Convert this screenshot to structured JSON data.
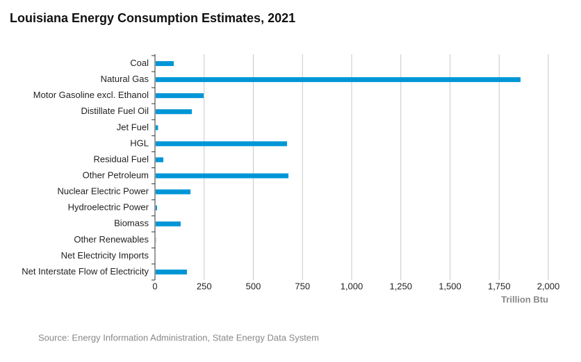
{
  "chart_data": {
    "type": "bar",
    "orientation": "horizontal",
    "title": "Louisiana Energy Consumption Estimates, 2021",
    "categories": [
      "Coal",
      "Natural Gas",
      "Motor Gasoline excl. Ethanol",
      "Distillate Fuel Oil",
      "Jet Fuel",
      "HGL",
      "Residual Fuel",
      "Other Petroleum",
      "Nuclear Electric Power",
      "Hydroelectric Power",
      "Biomass",
      "Other Renewables",
      "Net Electricity Imports",
      "Net Interstate Flow of Electricity"
    ],
    "values": [
      92,
      1855,
      244,
      184,
      12,
      668,
      39,
      675,
      177,
      7,
      127,
      1,
      0,
      159
    ],
    "color": "#0096d6",
    "xlabel": "Trillion Btu",
    "xlim": [
      0,
      2000
    ],
    "xticks": [
      0,
      250,
      500,
      750,
      {
        "value": 1000,
        "label": "1,000"
      },
      {
        "value": 1250,
        "label": "1,250"
      },
      {
        "value": 1500,
        "label": "1,500"
      },
      {
        "value": 1750,
        "label": "1,750"
      },
      {
        "value": 2000,
        "label": "2,000"
      }
    ],
    "grid": true,
    "source": "Source: Energy Information Administration, State Energy Data System"
  }
}
